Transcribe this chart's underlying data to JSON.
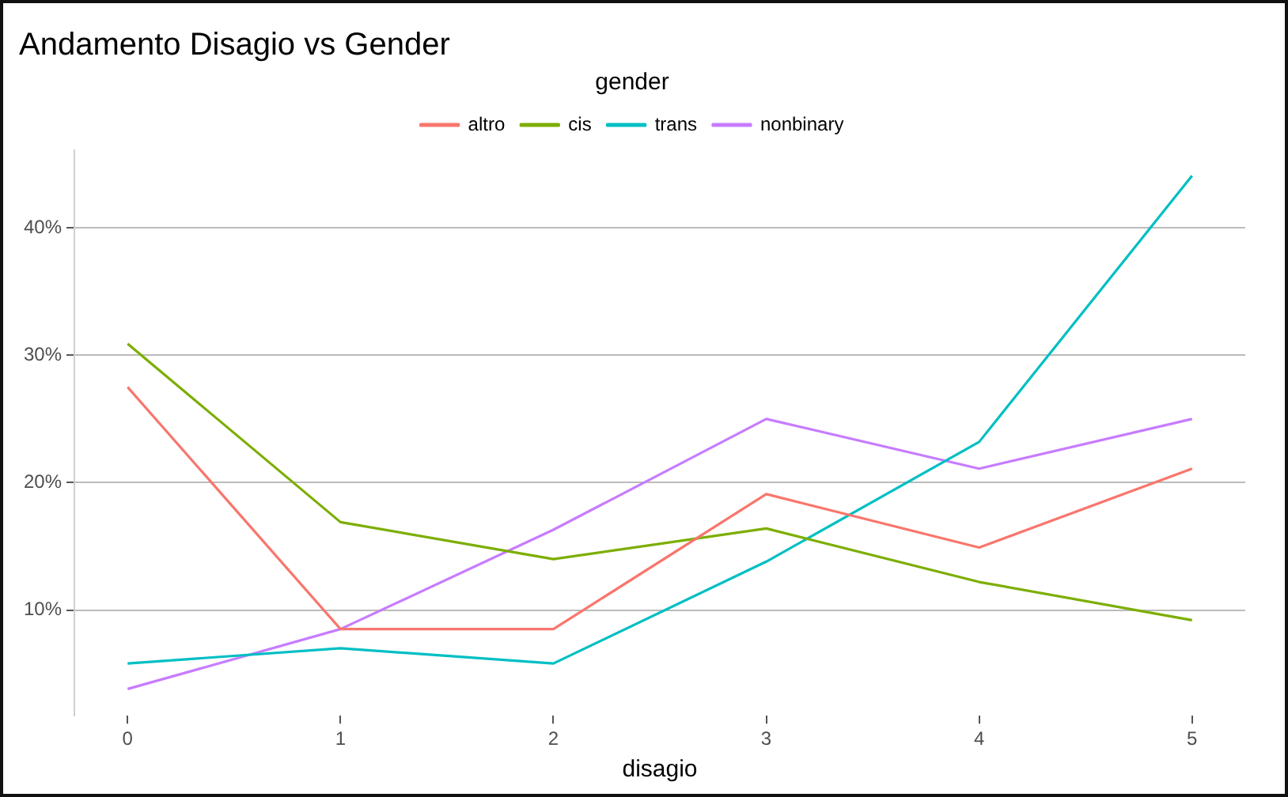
{
  "chart_data": {
    "type": "line",
    "title": "Andamento Disagio vs Gender",
    "xlabel": "disagio",
    "legend_title": "gender",
    "legend": "top",
    "grid": "y",
    "x": [
      0,
      1,
      2,
      3,
      4,
      5
    ],
    "xlim": [
      -0.25,
      5.25
    ],
    "xticks": [
      0,
      1,
      2,
      3,
      4,
      5
    ],
    "ylim": [
      1.7,
      46.1
    ],
    "yticks": [
      {
        "value": 10,
        "label": "10%"
      },
      {
        "value": 20,
        "label": "20%"
      },
      {
        "value": 30,
        "label": "30%"
      },
      {
        "value": 40,
        "label": "40%"
      }
    ],
    "line_style": "solid",
    "marker": "none",
    "series": [
      {
        "name": "altro",
        "color": "#f8766d",
        "values": [
          27.5,
          8.5,
          8.5,
          19.1,
          14.9,
          21.1
        ]
      },
      {
        "name": "cis",
        "color": "#7cae00",
        "values": [
          30.9,
          16.9,
          14.0,
          16.4,
          12.2,
          9.2
        ]
      },
      {
        "name": "trans",
        "color": "#00bfc4",
        "values": [
          5.8,
          7.0,
          5.8,
          13.8,
          23.2,
          44.1
        ]
      },
      {
        "name": "nonbinary",
        "color": "#c77cff",
        "values": [
          3.8,
          8.5,
          16.3,
          25.0,
          21.1,
          25.0
        ]
      }
    ]
  }
}
